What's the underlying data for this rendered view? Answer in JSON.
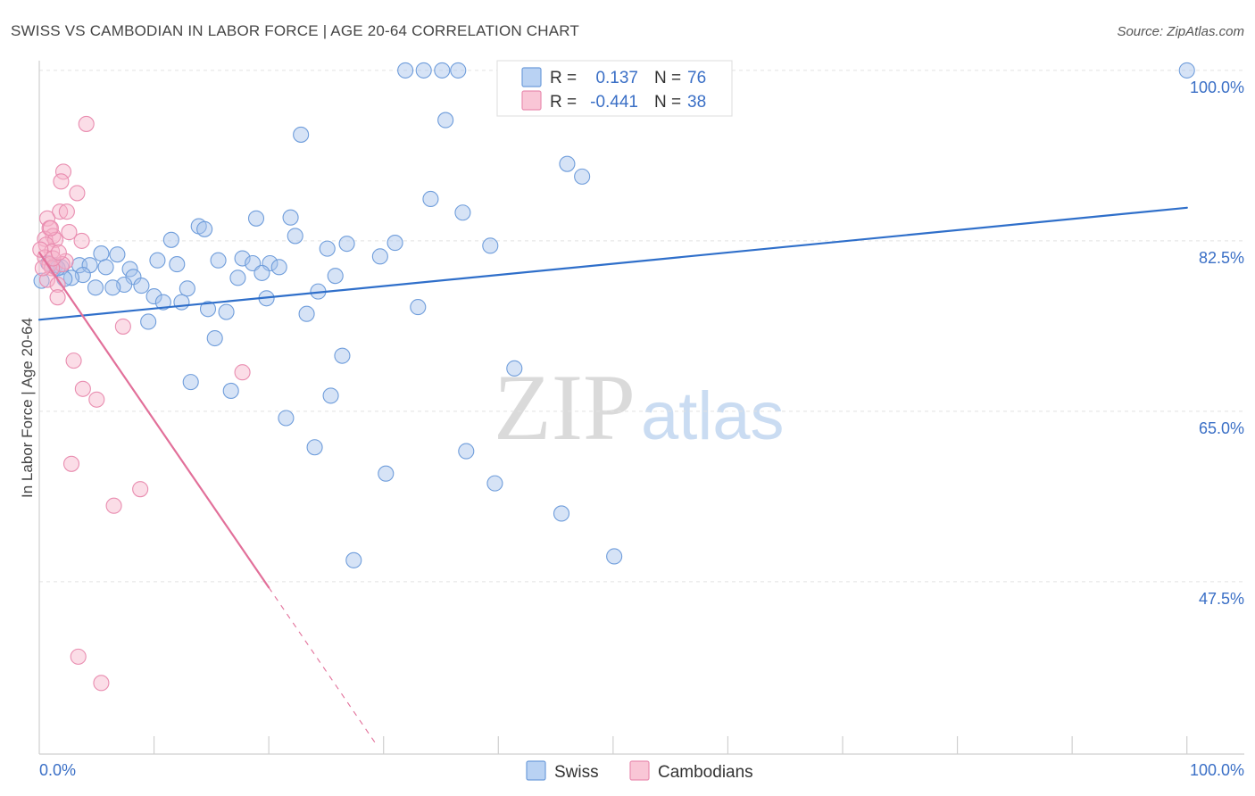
{
  "chart_data": {
    "type": "scatter",
    "title": "SWISS VS CAMBODIAN IN LABOR FORCE | AGE 20-64 CORRELATION CHART",
    "source": "Source: ZipAtlas.com",
    "ylabel": "In Labor Force | Age 20-64",
    "xlim": [
      0,
      105
    ],
    "ylim": [
      29.8,
      101.0
    ],
    "grid": true,
    "yticks": [
      {
        "value": 100,
        "label": "100.0%"
      },
      {
        "value": 82.5,
        "label": "82.5%"
      },
      {
        "value": 65,
        "label": "65.0%"
      },
      {
        "value": 47.5,
        "label": "47.5%"
      }
    ],
    "xticks": [
      {
        "value": 0,
        "label": "0.0%"
      },
      {
        "value": 100,
        "label": "100.0%"
      }
    ],
    "xtick_marks": [
      10,
      20,
      30,
      40,
      50,
      60,
      70,
      80,
      90,
      100
    ],
    "series": [
      {
        "name": "Swiss",
        "fill": "#a4c2ec",
        "stroke": "#6f9ddb",
        "line": "#2f6fca",
        "legend_fill": "#b9d2f3",
        "points": [
          [
            31.9,
            100.0
          ],
          [
            33.5,
            100.0
          ],
          [
            35.1,
            100.0
          ],
          [
            36.5,
            100.0
          ],
          [
            100.0,
            100.0
          ],
          [
            35.4,
            94.9
          ],
          [
            22.8,
            93.4
          ],
          [
            46.0,
            90.4
          ],
          [
            47.3,
            89.1
          ],
          [
            34.1,
            86.8
          ],
          [
            36.9,
            85.4
          ],
          [
            18.9,
            84.8
          ],
          [
            21.9,
            84.9
          ],
          [
            13.9,
            84.0
          ],
          [
            14.4,
            83.7
          ],
          [
            22.3,
            83.0
          ],
          [
            11.5,
            82.6
          ],
          [
            26.8,
            82.2
          ],
          [
            31.0,
            82.3
          ],
          [
            39.3,
            82.0
          ],
          [
            25.1,
            81.7
          ],
          [
            5.4,
            81.2
          ],
          [
            6.8,
            81.1
          ],
          [
            29.7,
            80.9
          ],
          [
            10.3,
            80.5
          ],
          [
            15.6,
            80.5
          ],
          [
            17.7,
            80.7
          ],
          [
            20.1,
            80.2
          ],
          [
            12.0,
            80.1
          ],
          [
            18.6,
            80.2
          ],
          [
            20.9,
            79.8
          ],
          [
            0.8,
            80.2
          ],
          [
            1.4,
            80.0
          ],
          [
            1.9,
            79.8
          ],
          [
            3.5,
            80.0
          ],
          [
            5.8,
            79.8
          ],
          [
            4.4,
            80.0
          ],
          [
            7.9,
            79.6
          ],
          [
            19.4,
            79.2
          ],
          [
            3.8,
            79.0
          ],
          [
            2.8,
            78.7
          ],
          [
            2.2,
            78.6
          ],
          [
            25.8,
            78.9
          ],
          [
            17.3,
            78.7
          ],
          [
            8.2,
            78.8
          ],
          [
            7.4,
            78.0
          ],
          [
            8.9,
            77.9
          ],
          [
            4.9,
            77.7
          ],
          [
            6.4,
            77.7
          ],
          [
            12.9,
            77.6
          ],
          [
            24.3,
            77.3
          ],
          [
            10.0,
            76.8
          ],
          [
            19.8,
            76.6
          ],
          [
            10.8,
            76.2
          ],
          [
            12.4,
            76.2
          ],
          [
            14.7,
            75.5
          ],
          [
            16.3,
            75.2
          ],
          [
            23.3,
            75.0
          ],
          [
            33.0,
            75.7
          ],
          [
            9.5,
            74.2
          ],
          [
            15.3,
            72.5
          ],
          [
            26.4,
            70.7
          ],
          [
            41.4,
            69.4
          ],
          [
            13.2,
            68.0
          ],
          [
            16.7,
            67.1
          ],
          [
            25.4,
            66.6
          ],
          [
            21.5,
            64.3
          ],
          [
            24.0,
            61.3
          ],
          [
            37.2,
            60.9
          ],
          [
            30.2,
            58.6
          ],
          [
            39.7,
            57.6
          ],
          [
            45.5,
            54.5
          ],
          [
            27.4,
            49.7
          ],
          [
            50.1,
            50.1
          ],
          [
            0.2,
            78.4
          ],
          [
            1.6,
            79.7
          ]
        ],
        "trend": {
          "x": [
            0,
            100
          ],
          "y": [
            74.4,
            85.9
          ]
        }
      },
      {
        "name": "Cambodians",
        "fill": "#f6b3c9",
        "stroke": "#e98db0",
        "line": "#e2709a",
        "legend_fill": "#f9c6d6",
        "points": [
          [
            4.1,
            94.5
          ],
          [
            2.1,
            89.6
          ],
          [
            1.9,
            88.6
          ],
          [
            3.3,
            87.4
          ],
          [
            1.8,
            85.5
          ],
          [
            2.4,
            85.5
          ],
          [
            0.7,
            84.8
          ],
          [
            0.9,
            83.8
          ],
          [
            2.6,
            83.4
          ],
          [
            1.2,
            83.0
          ],
          [
            0.5,
            82.7
          ],
          [
            3.7,
            82.5
          ],
          [
            1.4,
            82.6
          ],
          [
            0.6,
            82.1
          ],
          [
            1.1,
            81.4
          ],
          [
            0.5,
            80.8
          ],
          [
            2.3,
            80.4
          ],
          [
            2.0,
            80.1
          ],
          [
            0.9,
            80.1
          ],
          [
            1.1,
            79.7
          ],
          [
            0.7,
            78.5
          ],
          [
            1.6,
            78.0
          ],
          [
            1.6,
            76.7
          ],
          [
            7.3,
            73.7
          ],
          [
            3.0,
            70.2
          ],
          [
            17.7,
            69.0
          ],
          [
            3.8,
            67.3
          ],
          [
            5.0,
            66.2
          ],
          [
            2.8,
            59.6
          ],
          [
            8.8,
            57.0
          ],
          [
            6.5,
            55.3
          ],
          [
            3.4,
            39.8
          ],
          [
            5.4,
            37.1
          ],
          [
            0.3,
            79.7
          ],
          [
            1.2,
            80.7
          ],
          [
            1.7,
            81.3
          ],
          [
            0.1,
            81.6
          ],
          [
            1.0,
            83.8
          ]
        ],
        "trend": {
          "x": [
            0,
            20
          ],
          "y": [
            81.3,
            46.9
          ],
          "ext_x": [
            20,
            29.3
          ],
          "ext_y": [
            46.9,
            30.9
          ]
        }
      }
    ],
    "stats_legend": {
      "rows": [
        {
          "r_label": "R =",
          "r": "0.137",
          "n_label": "N =",
          "n": "76"
        },
        {
          "r_label": "R =",
          "r": "-0.441",
          "n_label": "N =",
          "n": "38"
        }
      ]
    },
    "watermark": {
      "part1": "ZIP",
      "part2": "atlas"
    },
    "value_color": "#3a6fc6"
  }
}
